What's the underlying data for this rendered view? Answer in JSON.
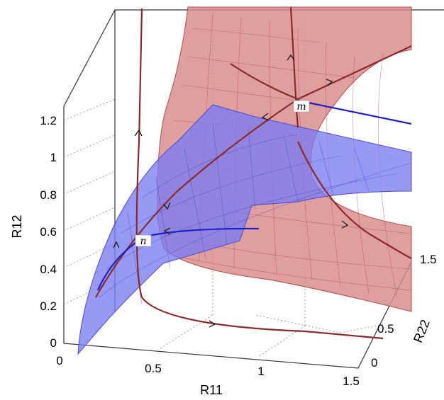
{
  "chart_data": {
    "type": "surface-3d",
    "xlabel": "R11",
    "ylabel": "R12",
    "zlabel": "R22",
    "x_ticks": [
      "0",
      "0.5",
      "1",
      "1.5"
    ],
    "y_ticks": [
      "0",
      "0.2",
      "0.4",
      "0.6",
      "0.8",
      "1",
      "1.2"
    ],
    "z_ticks": [
      "0",
      "0.5",
      "1.5"
    ],
    "xlim": [
      0,
      1.5
    ],
    "ylim": [
      0,
      1.2
    ],
    "zlim": [
      0,
      1.5
    ],
    "grid": true,
    "surfaces": [
      {
        "color": "#d98a8a"
      },
      {
        "color": "#7b7cf2"
      }
    ],
    "trajectory_colors": [
      "#8b2a2a",
      "#2020c8"
    ],
    "points": [
      {
        "label": "m"
      },
      {
        "label": "n"
      }
    ]
  }
}
